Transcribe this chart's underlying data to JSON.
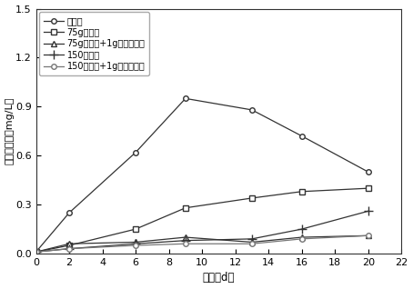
{
  "x": [
    0,
    2,
    6,
    9,
    13,
    16,
    20
  ],
  "series": [
    {
      "label": "对照组",
      "y": [
        0.01,
        0.25,
        0.62,
        0.95,
        0.88,
        0.72,
        0.5
      ],
      "marker": "o",
      "mfc": "white",
      "color": "#333333"
    },
    {
      "label": "75g方解石",
      "y": [
        0.01,
        0.05,
        0.15,
        0.28,
        0.34,
        0.38,
        0.4
      ],
      "marker": "s",
      "mfc": "white",
      "color": "#333333"
    },
    {
      "label": "75g方解石+1g羟基磷灰石",
      "y": [
        0.01,
        0.06,
        0.07,
        0.1,
        0.07,
        0.1,
        0.11
      ],
      "marker": "^",
      "mfc": "white",
      "color": "#333333"
    },
    {
      "label": "150方解石",
      "y": [
        0.01,
        0.03,
        0.06,
        0.08,
        0.09,
        0.15,
        0.26
      ],
      "marker": "+",
      "mfc": "none",
      "color": "#333333"
    },
    {
      "label": "150方解石+1g羟基磷灰石",
      "y": [
        0.01,
        0.03,
        0.05,
        0.06,
        0.06,
        0.09,
        0.11
      ],
      "marker": "o",
      "mfc": "white",
      "color": "#777777"
    }
  ],
  "xlabel": "时间（d）",
  "ylabel": "上覆水浓度（mg/L）",
  "xlim": [
    0,
    22
  ],
  "ylim": [
    0,
    1.5
  ],
  "xticks": [
    0,
    2,
    4,
    6,
    8,
    10,
    12,
    14,
    16,
    18,
    20,
    22
  ],
  "yticks": [
    0.0,
    0.3,
    0.6,
    0.9,
    1.2,
    1.5
  ],
  "figsize": [
    4.54,
    3.18
  ],
  "dpi": 100
}
